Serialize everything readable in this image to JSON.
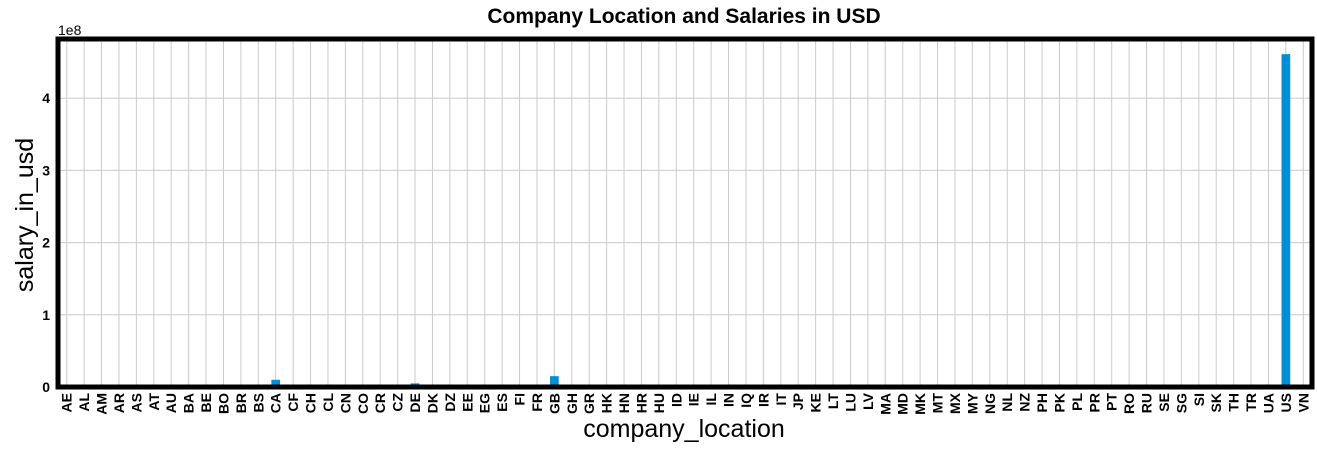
{
  "chart_data": {
    "type": "bar",
    "title": "Company Location  and Salaries in USD",
    "xlabel": "company_location",
    "ylabel": "salary_in_usd",
    "y_offset_label": "1e8",
    "y_scale_factor": 100000000,
    "ylim": [
      0,
      4.82
    ],
    "yticks": [
      0,
      1,
      2,
      3,
      4
    ],
    "grid": true,
    "bar_color": "#008fd5",
    "categories": [
      "AE",
      "AL",
      "AM",
      "AR",
      "AS",
      "AT",
      "AU",
      "BA",
      "BE",
      "BO",
      "BR",
      "BS",
      "CA",
      "CF",
      "CH",
      "CL",
      "CN",
      "CO",
      "CR",
      "CZ",
      "DE",
      "DK",
      "DZ",
      "EE",
      "EG",
      "ES",
      "FI",
      "FR",
      "GB",
      "GH",
      "GR",
      "HK",
      "HN",
      "HR",
      "HU",
      "ID",
      "IE",
      "IL",
      "IN",
      "IQ",
      "IR",
      "IT",
      "JP",
      "KE",
      "LT",
      "LU",
      "LV",
      "MA",
      "MD",
      "MK",
      "MT",
      "MX",
      "MY",
      "NG",
      "NL",
      "NZ",
      "PH",
      "PK",
      "PL",
      "PR",
      "PT",
      "RO",
      "RU",
      "SE",
      "SG",
      "SI",
      "SK",
      "TH",
      "TR",
      "UA",
      "US",
      "VN"
    ],
    "values": [
      0.001,
      0.001,
      0.0005,
      0.001,
      0.0002,
      0.001,
      0.001,
      0.0012,
      0.0005,
      0.0001,
      0.0009,
      0.0005,
      0.1,
      0.0005,
      0.003,
      0.0002,
      0.0005,
      0.0005,
      0.0005,
      0.001,
      0.05,
      0.001,
      0.001,
      0.0015,
      0.0002,
      0.028,
      0.0025,
      0.01,
      0.15,
      0.0002,
      0.004,
      0.0005,
      0.0002,
      0.001,
      0.0007,
      0.0005,
      0.003,
      0.003,
      0.008,
      0.001,
      0.0003,
      0.004,
      0.0015,
      0.0003,
      0.0015,
      0.001,
      0.0001,
      0.0001,
      0.0002,
      0.0002,
      0.0003,
      0.004,
      0.0002,
      0.0015,
      0.005,
      0.001,
      0.0005,
      0.001,
      0.002,
      0.002,
      0.003,
      0.0005,
      0.001,
      0.002,
      0.0005,
      0.002,
      0.0003,
      0.0002,
      0.0005,
      0.0005,
      4.61,
      0.0005
    ]
  }
}
